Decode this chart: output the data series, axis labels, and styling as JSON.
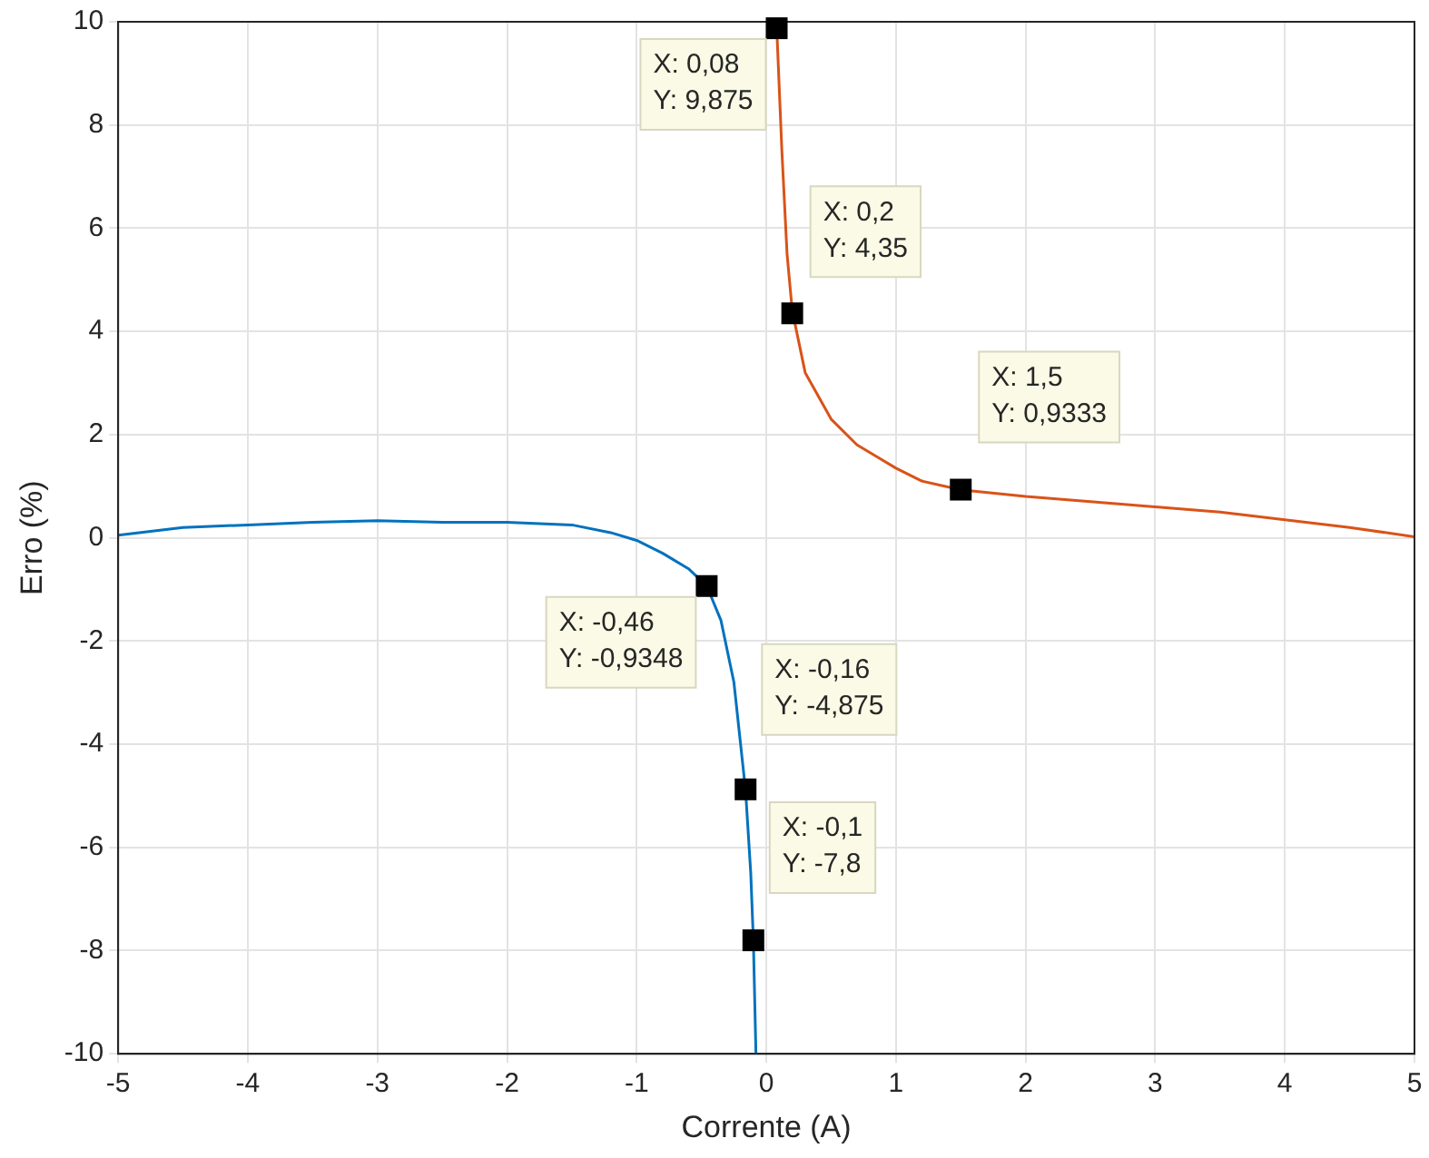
{
  "chart_data": {
    "type": "line",
    "xlabel": "Corrente (A)",
    "ylabel": "Erro (%)",
    "xlim": [
      -5,
      5
    ],
    "xticks": [
      -5,
      -4,
      -3,
      -2,
      -1,
      0,
      1,
      2,
      3,
      4,
      5
    ],
    "ylim": [
      -10,
      10
    ],
    "yticks": [
      -10,
      -8,
      -6,
      -4,
      -2,
      0,
      2,
      4,
      6,
      8,
      10
    ],
    "grid": true,
    "legend": false,
    "marker": "none",
    "line_style": "solid",
    "series": [
      {
        "color": "#0072bd",
        "x": [
          -5,
          -4.5,
          -4,
          -3.5,
          -3,
          -2.5,
          -2,
          -1.5,
          -1.2,
          -1,
          -0.8,
          -0.6,
          -0.46,
          -0.35,
          -0.25,
          -0.16,
          -0.12,
          -0.1,
          -0.08
        ],
        "values": [
          0.05,
          0.2,
          0.25,
          0.3,
          0.33,
          0.3,
          0.3,
          0.25,
          0.1,
          -0.05,
          -0.3,
          -0.6,
          -0.93,
          -1.6,
          -2.8,
          -4.9,
          -6.5,
          -7.8,
          -10
        ]
      },
      {
        "color": "#d95319",
        "x": [
          0.08,
          0.12,
          0.16,
          0.2,
          0.3,
          0.5,
          0.7,
          1,
          1.2,
          1.5,
          2,
          2.5,
          3,
          3.5,
          4,
          4.5,
          5
        ],
        "values": [
          9.9,
          7.5,
          5.5,
          4.4,
          3.2,
          2.3,
          1.8,
          1.35,
          1.1,
          0.93,
          0.8,
          0.7,
          0.6,
          0.5,
          0.35,
          0.2,
          0.02
        ]
      }
    ],
    "annotations": [
      {
        "text": "X: 0,08\nY: 9,875",
        "x": 0.08,
        "y": 9.875
      },
      {
        "text": "X: 0,2\nY: 4,35",
        "x": 0.2,
        "y": 4.35
      },
      {
        "text": "X: 1,5\nY: 0,9333",
        "x": 1.5,
        "y": 0.9333
      },
      {
        "text": "X: -0,46\nY: -0,9348",
        "x": -0.46,
        "y": -0.9348
      },
      {
        "text": "X: -0,16\nY: -4,875",
        "x": -0.16,
        "y": -4.875
      },
      {
        "text": "X: -0,1\nY: -7,8",
        "x": -0.1,
        "y": -7.8
      }
    ]
  }
}
